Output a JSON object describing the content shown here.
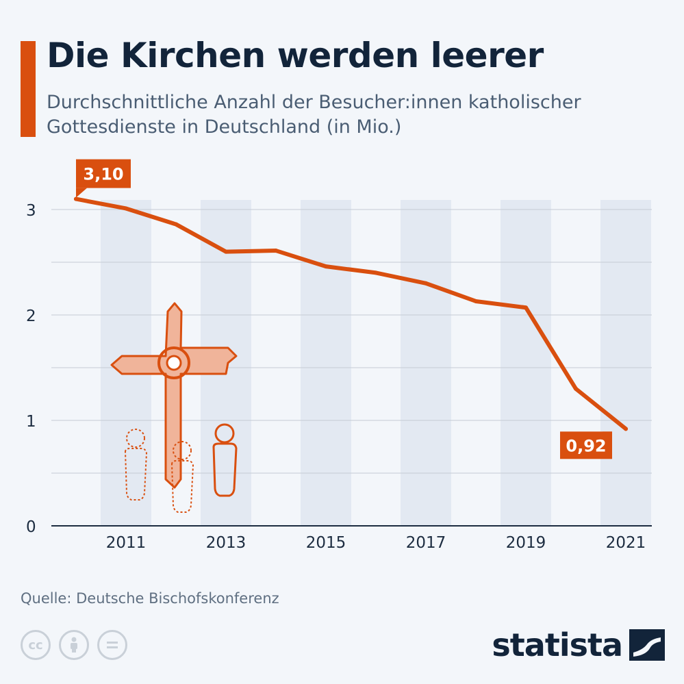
{
  "header": {
    "title": "Die Kirchen werden leerer",
    "subtitle": "Durchschnittliche Anzahl der Besucher:innen katholischer Gottesdienste in Deutschland (in Mio.)"
  },
  "footer": {
    "source": "Quelle: Deutsche Bischofskonferenz",
    "logo": "statista",
    "license_icons": [
      "cc-icon",
      "by-icon",
      "nd-icon"
    ]
  },
  "colors": {
    "accent": "#d94f0f",
    "band": "#e3e9f2",
    "grid": "#c4cbd4",
    "axis": "#1c2c40",
    "illustration_fill": "#f0b49a"
  },
  "chart_data": {
    "type": "line",
    "title": "Die Kirchen werden leerer",
    "x": [
      2010,
      2011,
      2012,
      2013,
      2014,
      2015,
      2016,
      2017,
      2018,
      2019,
      2020,
      2021
    ],
    "xticks": [
      "2011",
      "2013",
      "2015",
      "2017",
      "2019",
      "2021"
    ],
    "ytick_labels": [
      "0",
      "1",
      "2",
      "3"
    ],
    "ylim": [
      0,
      3.3
    ],
    "grid": true,
    "series": [
      {
        "values": [
          3.1,
          3.01,
          2.86,
          2.6,
          2.61,
          2.46,
          2.4,
          2.3,
          2.13,
          2.07,
          1.3,
          0.92
        ]
      }
    ],
    "annotations": [
      {
        "x": 2010,
        "text": "3,10"
      },
      {
        "x": 2021,
        "text": "0,92"
      }
    ]
  }
}
